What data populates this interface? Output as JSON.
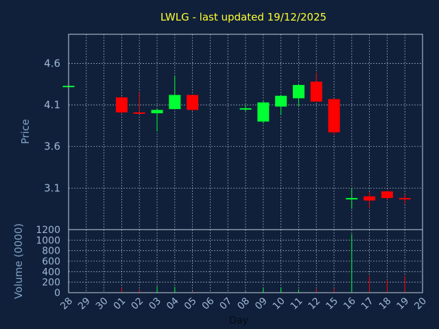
{
  "chart_data": {
    "type": "candlestick",
    "title": "LWLG - last updated 19/12/2025",
    "xlabel": "Day",
    "x_ticks": [
      "28",
      "29",
      "30",
      "01",
      "02",
      "03",
      "04",
      "05",
      "06",
      "07",
      "08",
      "09",
      "10",
      "11",
      "12",
      "15",
      "16",
      "17",
      "18",
      "19",
      "20"
    ],
    "price_panel": {
      "ylabel": "Price",
      "ylim": [
        2.6,
        4.95
      ],
      "y_ticks": [
        "3.1",
        "3.6",
        "4.1",
        "4.6"
      ],
      "grid": true,
      "candles": [
        {
          "day": "28",
          "open": 4.33,
          "high": 4.33,
          "low": 4.33,
          "close": 4.33
        },
        {
          "day": "01",
          "open": 4.19,
          "high": 4.21,
          "low": 3.99,
          "close": 4.01
        },
        {
          "day": "02",
          "open": 4.01,
          "high": 4.25,
          "low": 4.0,
          "close": 4.0
        },
        {
          "day": "03",
          "open": 4.0,
          "high": 4.06,
          "low": 3.78,
          "close": 4.04
        },
        {
          "day": "04",
          "open": 4.05,
          "high": 4.45,
          "low": 4.05,
          "close": 4.22
        },
        {
          "day": "05",
          "open": 4.22,
          "high": 4.22,
          "low": 4.03,
          "close": 4.04
        },
        {
          "day": "08",
          "open": 4.06,
          "high": 4.1,
          "low": 4.02,
          "close": 4.06
        },
        {
          "day": "09",
          "open": 3.9,
          "high": 4.14,
          "low": 3.88,
          "close": 4.13
        },
        {
          "day": "10",
          "open": 4.08,
          "high": 4.22,
          "low": 3.98,
          "close": 4.21
        },
        {
          "day": "11",
          "open": 4.18,
          "high": 4.35,
          "low": 4.08,
          "close": 4.34
        },
        {
          "day": "12",
          "open": 4.38,
          "high": 4.49,
          "low": 4.14,
          "close": 4.14
        },
        {
          "day": "15",
          "open": 4.17,
          "high": 4.17,
          "low": 3.74,
          "close": 3.77
        },
        {
          "day": "16",
          "open": 2.98,
          "high": 3.1,
          "low": 2.85,
          "close": 2.98
        },
        {
          "day": "17",
          "open": 3.0,
          "high": 3.05,
          "low": 2.86,
          "close": 2.95
        },
        {
          "day": "18",
          "open": 3.06,
          "high": 3.07,
          "low": 2.96,
          "close": 2.98
        },
        {
          "day": "19",
          "open": 2.98,
          "high": 3.02,
          "low": 2.91,
          "close": 2.97
        }
      ]
    },
    "volume_panel": {
      "ylabel": "Volume (0000)",
      "ylim": [
        0,
        1200
      ],
      "y_ticks": [
        "0",
        "200",
        "400",
        "600",
        "800",
        "1000",
        "1200"
      ],
      "grid": true,
      "bars": [
        {
          "day": "01",
          "value": 100
        },
        {
          "day": "02",
          "value": 60
        },
        {
          "day": "03",
          "value": 120
        },
        {
          "day": "04",
          "value": 110
        },
        {
          "day": "05",
          "value": 25
        },
        {
          "day": "08",
          "value": 20
        },
        {
          "day": "09",
          "value": 90
        },
        {
          "day": "10",
          "value": 100
        },
        {
          "day": "11",
          "value": 60
        },
        {
          "day": "12",
          "value": 70
        },
        {
          "day": "15",
          "value": 80
        },
        {
          "day": "16",
          "value": 1110
        },
        {
          "day": "17",
          "value": 320
        },
        {
          "day": "18",
          "value": 250
        },
        {
          "day": "19",
          "value": 320
        }
      ]
    },
    "colors": {
      "up": "#00ff33",
      "down": "#ff0000",
      "background": "#10203a",
      "title": "#ffff33"
    }
  }
}
